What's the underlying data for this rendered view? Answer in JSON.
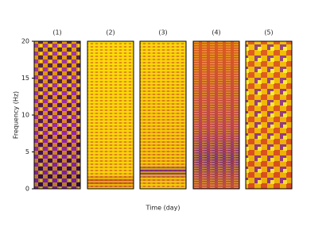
{
  "chart_data": {
    "type": "heatmap",
    "panel_titles": [
      "(1)",
      "(2)",
      "(3)",
      "(4)",
      "(5)"
    ],
    "y_label": "Frequency (Hz)",
    "x_label": "Time (day)",
    "ylim": [
      0,
      20
    ],
    "yticks": [
      0,
      5,
      10,
      15,
      20
    ]
  }
}
